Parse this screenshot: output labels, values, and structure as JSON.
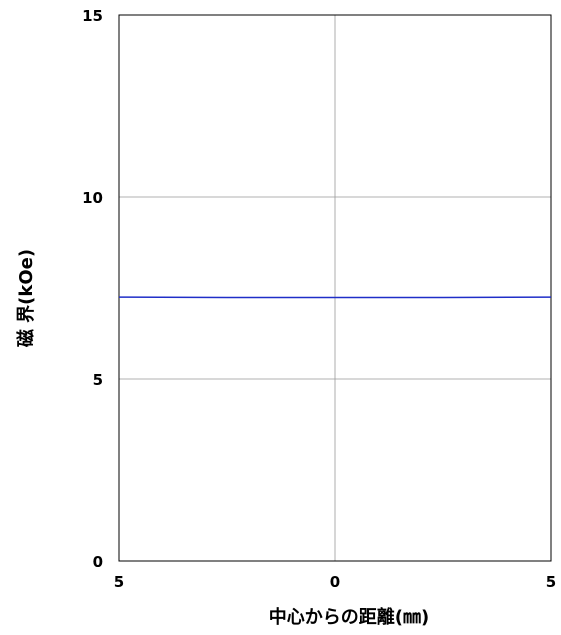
{
  "chart_data": {
    "type": "line",
    "title": "",
    "xlabel": "中心からの距離(㎜)",
    "ylabel": "磁 界(kOe)",
    "xlim": [
      -5,
      5
    ],
    "ylim": [
      0,
      15
    ],
    "x_ticks": [
      -5,
      0,
      5
    ],
    "x_tick_labels": [
      "5",
      "0",
      "5"
    ],
    "y_ticks": [
      0,
      5,
      10,
      15
    ],
    "y_tick_labels": [
      "0",
      "5",
      "10",
      "15"
    ],
    "grid": true,
    "series": [
      {
        "color": "#1f2ec8",
        "x": [
          -5,
          -2.5,
          0,
          2.5,
          5
        ],
        "y": [
          7.25,
          7.24,
          7.24,
          7.24,
          7.25
        ]
      }
    ]
  }
}
